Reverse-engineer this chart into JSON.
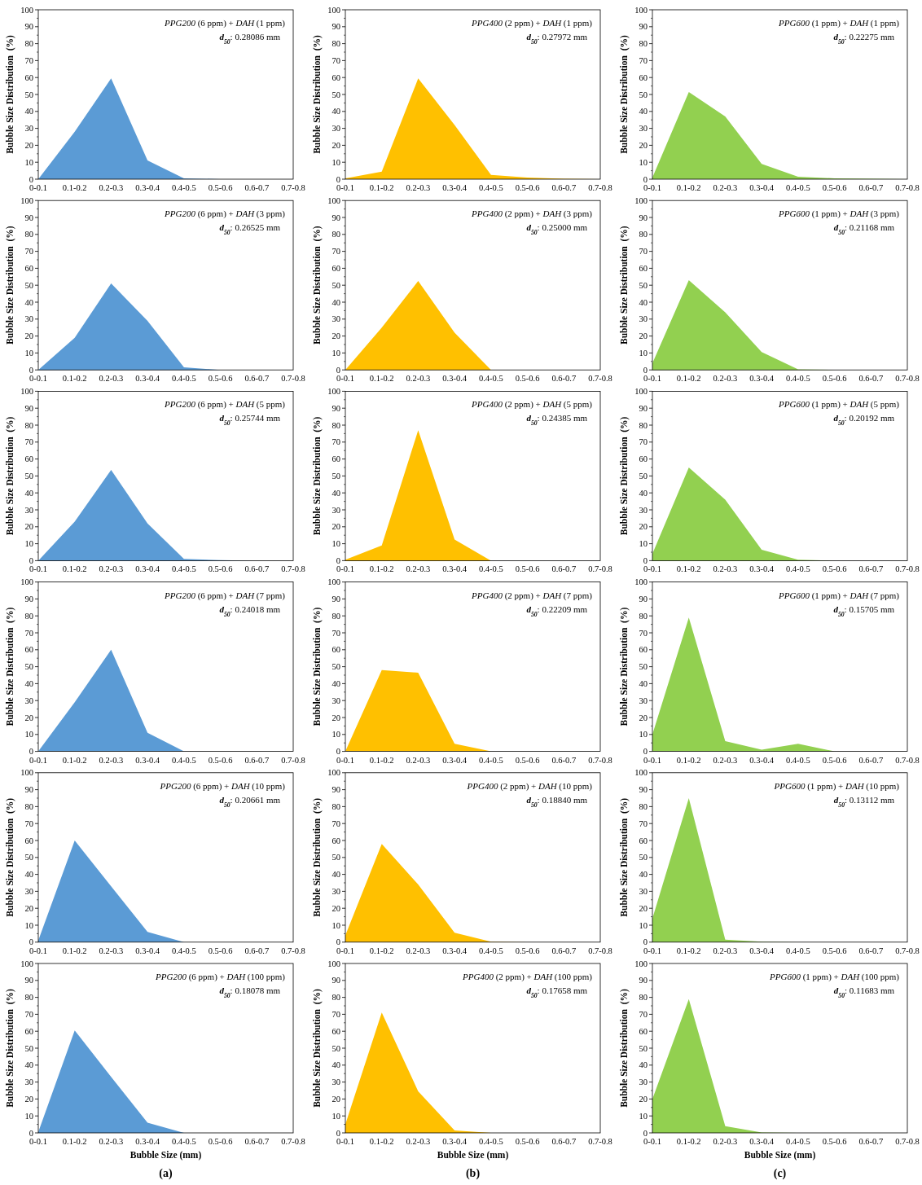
{
  "chart_data": [
    {
      "type": "area",
      "categories": [
        "0-0.1",
        "0.1-0.2",
        "0.2-0.3",
        "0.3-0.4",
        "0.4-0.5",
        "0.5-0.6",
        "0.6-0.7",
        "0.7-0.8"
      ],
      "values": [
        0,
        28,
        59.5,
        11,
        0.5,
        0,
        0,
        0
      ],
      "color": "#5b9bd5",
      "ylim": [
        0,
        100
      ],
      "yticks": [
        0,
        10,
        20,
        30,
        40,
        50,
        60,
        70,
        80,
        90,
        100
      ],
      "ylabel": "Bubble Size Distribution  (%)",
      "annotations": [
        "PPG200 (6 ppm) + DAH (1 ppm)",
        "d$_{50}$: 0.28086 mm"
      ]
    },
    {
      "type": "area",
      "categories": [
        "0-0.1",
        "0.1-0.2",
        "0.2-0.3",
        "0.3-0.4",
        "0.4-0.5",
        "0.5-0.6",
        "0.6-0.7",
        "0.7-0.8"
      ],
      "values": [
        0.5,
        4.5,
        59.5,
        32,
        2.5,
        1,
        0.2,
        0
      ],
      "color": "#ffc000",
      "ylim": [
        0,
        100
      ],
      "yticks": [
        0,
        10,
        20,
        30,
        40,
        50,
        60,
        70,
        80,
        90,
        100
      ],
      "ylabel": "Bubble Size Distribution  (%)",
      "annotations": [
        "PPG400 (2 ppm) + DAH (1 ppm)",
        "d$_{50}$: 0.27972 mm"
      ]
    },
    {
      "type": "area",
      "categories": [
        "0-0.1",
        "0.1-0.2",
        "0.2-0.3",
        "0.3-0.4",
        "0.4-0.5",
        "0.5-0.6",
        "0.6-0.7",
        "0.7-0.8"
      ],
      "values": [
        1,
        51.5,
        37,
        9,
        1.5,
        0.5,
        0.2,
        0
      ],
      "color": "#92d050",
      "ylim": [
        0,
        100
      ],
      "yticks": [
        0,
        10,
        20,
        30,
        40,
        50,
        60,
        70,
        80,
        90,
        100
      ],
      "ylabel": "Bubble Size Distribution  (%)",
      "annotations": [
        "PPG600 (1 ppm) + DAH (1 ppm)",
        "d$_{50}$: 0.22275 mm"
      ]
    },
    {
      "type": "area",
      "categories": [
        "0-0.1",
        "0.1-0.2",
        "0.2-0.3",
        "0.3-0.4",
        "0.4-0.5",
        "0.5-0.6",
        "0.6-0.7",
        "0.7-0.8"
      ],
      "values": [
        0,
        19,
        51,
        29,
        1.5,
        0,
        0,
        0
      ],
      "color": "#5b9bd5",
      "ylim": [
        0,
        100
      ],
      "yticks": [
        0,
        10,
        20,
        30,
        40,
        50,
        60,
        70,
        80,
        90,
        100
      ],
      "ylabel": "Bubble Size Distribution  (%)",
      "annotations": [
        "PPG200 (6 ppm) + DAH (3 ppm)",
        "d$_{50}$: 0.26525 mm"
      ]
    },
    {
      "type": "area",
      "categories": [
        "0-0.1",
        "0.1-0.2",
        "0.2-0.3",
        "0.3-0.4",
        "0.4-0.5",
        "0.5-0.6",
        "0.6-0.7",
        "0.7-0.8"
      ],
      "values": [
        0,
        25,
        52.5,
        22,
        0,
        0,
        0,
        0
      ],
      "color": "#ffc000",
      "ylim": [
        0,
        100
      ],
      "yticks": [
        0,
        10,
        20,
        30,
        40,
        50,
        60,
        70,
        80,
        90,
        100
      ],
      "ylabel": "Bubble Size Distribution  (%)",
      "annotations": [
        "PPG400 (2 ppm) + DAH (3 ppm)",
        "d$_{50}$: 0.25000 mm"
      ]
    },
    {
      "type": "area",
      "categories": [
        "0-0.1",
        "0.1-0.2",
        "0.2-0.3",
        "0.3-0.4",
        "0.4-0.5",
        "0.5-0.6",
        "0.6-0.7",
        "0.7-0.8"
      ],
      "values": [
        4,
        53,
        34,
        10.5,
        0.3,
        0,
        0,
        0
      ],
      "color": "#92d050",
      "ylim": [
        0,
        100
      ],
      "yticks": [
        0,
        10,
        20,
        30,
        40,
        50,
        60,
        70,
        80,
        90,
        100
      ],
      "ylabel": "Bubble Size Distribution  (%)",
      "annotations": [
        "PPG600 (1 ppm) + DAH (3 ppm)",
        "d$_{50}$: 0.21168 mm"
      ]
    },
    {
      "type": "area",
      "categories": [
        "0-0.1",
        "0.1-0.2",
        "0.2-0.3",
        "0.3-0.4",
        "0.4-0.5",
        "0.5-0.6",
        "0.6-0.7",
        "0.7-0.8"
      ],
      "values": [
        0,
        23,
        53.5,
        22,
        1,
        0.3,
        0,
        0
      ],
      "color": "#5b9bd5",
      "ylim": [
        0,
        100
      ],
      "yticks": [
        0,
        10,
        20,
        30,
        40,
        50,
        60,
        70,
        80,
        90,
        100
      ],
      "ylabel": "Bubble Size Distribution  (%)",
      "annotations": [
        "PPG200 (6 ppm) + DAH (5 ppm)",
        "d$_{50}$: 0.25744 mm"
      ]
    },
    {
      "type": "area",
      "categories": [
        "0-0.1",
        "0.1-0.2",
        "0.2-0.3",
        "0.3-0.4",
        "0.4-0.5",
        "0.5-0.6",
        "0.6-0.7",
        "0.7-0.8"
      ],
      "values": [
        0.5,
        9,
        77,
        12.5,
        0,
        0,
        0,
        0
      ],
      "color": "#ffc000",
      "ylim": [
        0,
        100
      ],
      "yticks": [
        0,
        10,
        20,
        30,
        40,
        50,
        60,
        70,
        80,
        90,
        100
      ],
      "ylabel": "Bubble Size Distribution  (%)",
      "annotations": [
        "PPG400 (2 ppm) + DAH (5 ppm)",
        "d$_{50}$: 0.24385 mm"
      ]
    },
    {
      "type": "area",
      "categories": [
        "0-0.1",
        "0.1-0.2",
        "0.2-0.3",
        "0.3-0.4",
        "0.4-0.5",
        "0.5-0.6",
        "0.6-0.7",
        "0.7-0.8"
      ],
      "values": [
        4,
        55,
        36,
        6.5,
        0.5,
        0,
        0,
        0
      ],
      "color": "#92d050",
      "ylim": [
        0,
        100
      ],
      "yticks": [
        0,
        10,
        20,
        30,
        40,
        50,
        60,
        70,
        80,
        90,
        100
      ],
      "ylabel": "Bubble Size Distribution  (%)",
      "annotations": [
        "PPG600 (1 ppm) + DAH (5 ppm)",
        "d$_{50}$: 0.20192 mm"
      ]
    },
    {
      "type": "area",
      "categories": [
        "0-0.1",
        "0.1-0.2",
        "0.2-0.3",
        "0.3-0.4",
        "0.4-0.5",
        "0.5-0.6",
        "0.6-0.7",
        "0.7-0.8"
      ],
      "values": [
        0,
        29,
        60,
        11,
        0,
        0,
        0,
        0
      ],
      "color": "#5b9bd5",
      "ylim": [
        0,
        100
      ],
      "yticks": [
        0,
        10,
        20,
        30,
        40,
        50,
        60,
        70,
        80,
        90,
        100
      ],
      "ylabel": "Bubble Size Distribution  (%)",
      "annotations": [
        "PPG200 (6 ppm) + DAH (7 ppm)",
        "d$_{50}$: 0.24018 mm"
      ]
    },
    {
      "type": "area",
      "categories": [
        "0-0.1",
        "0.1-0.2",
        "0.2-0.3",
        "0.3-0.4",
        "0.4-0.5",
        "0.5-0.6",
        "0.6-0.7",
        "0.7-0.8"
      ],
      "values": [
        0,
        48,
        46.5,
        4.5,
        0,
        0,
        0,
        0
      ],
      "color": "#ffc000",
      "ylim": [
        0,
        100
      ],
      "yticks": [
        0,
        10,
        20,
        30,
        40,
        50,
        60,
        70,
        80,
        90,
        100
      ],
      "ylabel": "Bubble Size Distribution  (%)",
      "annotations": [
        "PPG400 (2 ppm) + DAH (7 ppm)",
        "d$_{50}$: 0.22209 mm"
      ]
    },
    {
      "type": "area",
      "categories": [
        "0-0.1",
        "0.1-0.2",
        "0.2-0.3",
        "0.3-0.4",
        "0.4-0.5",
        "0.5-0.6",
        "0.6-0.7",
        "0.7-0.8"
      ],
      "values": [
        10,
        79,
        6,
        1,
        4.5,
        0,
        0,
        0
      ],
      "color": "#92d050",
      "ylim": [
        0,
        100
      ],
      "yticks": [
        0,
        10,
        20,
        30,
        40,
        50,
        60,
        70,
        80,
        90,
        100
      ],
      "ylabel": "Bubble Size Distribution  (%)",
      "annotations": [
        "PPG600 (1 ppm) + DAH (7 ppm)",
        "d$_{50}$: 0.15705 mm"
      ]
    },
    {
      "type": "area",
      "categories": [
        "0-0.1",
        "0.1-0.2",
        "0.2-0.3",
        "0.3-0.4",
        "0.4-0.5",
        "0.5-0.6",
        "0.6-0.7",
        "0.7-0.8"
      ],
      "values": [
        1,
        60,
        33,
        6,
        0,
        0,
        0,
        0
      ],
      "color": "#5b9bd5",
      "ylim": [
        0,
        100
      ],
      "yticks": [
        0,
        10,
        20,
        30,
        40,
        50,
        60,
        70,
        80,
        90,
        100
      ],
      "ylabel": "Bubble Size Distribution  (%)",
      "annotations": [
        "PPG200 (6 ppm) + DAH (10 ppm)",
        "d$_{50}$: 0.20661 mm"
      ]
    },
    {
      "type": "area",
      "categories": [
        "0-0.1",
        "0.1-0.2",
        "0.2-0.3",
        "0.3-0.4",
        "0.4-0.5",
        "0.5-0.6",
        "0.6-0.7",
        "0.7-0.8"
      ],
      "values": [
        4,
        58,
        34,
        5.5,
        0.3,
        0,
        0,
        0
      ],
      "color": "#ffc000",
      "ylim": [
        0,
        100
      ],
      "yticks": [
        0,
        10,
        20,
        30,
        40,
        50,
        60,
        70,
        80,
        90,
        100
      ],
      "ylabel": "Bubble Size Distribution  (%)",
      "annotations": [
        "PPG400 (2 ppm) + DAH (10 ppm)",
        "d$_{50}$: 0.18840 mm"
      ]
    },
    {
      "type": "area",
      "categories": [
        "0-0.1",
        "0.1-0.2",
        "0.2-0.3",
        "0.3-0.4",
        "0.4-0.5",
        "0.5-0.6",
        "0.6-0.7",
        "0.7-0.8"
      ],
      "values": [
        14,
        85,
        1.5,
        0.3,
        0,
        0,
        0,
        0
      ],
      "color": "#92d050",
      "ylim": [
        0,
        100
      ],
      "yticks": [
        0,
        10,
        20,
        30,
        40,
        50,
        60,
        70,
        80,
        90,
        100
      ],
      "ylabel": "Bubble Size Distribution  (%)",
      "annotations": [
        "PPG600 (1 ppm) + DAH (10 ppm)",
        "d$_{50}$: 0.13112 mm"
      ]
    },
    {
      "type": "area",
      "categories": [
        "0-0.1",
        "0.1-0.2",
        "0.2-0.3",
        "0.3-0.4",
        "0.4-0.5",
        "0.5-0.6",
        "0.6-0.7",
        "0.7-0.8"
      ],
      "values": [
        0.5,
        60.5,
        33,
        6,
        0,
        0,
        0,
        0
      ],
      "color": "#5b9bd5",
      "ylim": [
        0,
        100
      ],
      "yticks": [
        0,
        10,
        20,
        30,
        40,
        50,
        60,
        70,
        80,
        90,
        100
      ],
      "ylabel": "Bubble Size Distribution  (%)",
      "xlabel": "Bubble Size (mm)",
      "annotations": [
        "PPG200 (6 ppm) + DAH (100 ppm)",
        "d$_{50}$: 0.18078 mm",
        "(a)"
      ]
    },
    {
      "type": "area",
      "categories": [
        "0-0.1",
        "0.1-0.2",
        "0.2-0.3",
        "0.3-0.4",
        "0.4-0.5",
        "0.5-0.6",
        "0.6-0.7",
        "0.7-0.8"
      ],
      "values": [
        5,
        71,
        24.5,
        1.5,
        0,
        0,
        0,
        0
      ],
      "color": "#ffc000",
      "ylim": [
        0,
        100
      ],
      "yticks": [
        0,
        10,
        20,
        30,
        40,
        50,
        60,
        70,
        80,
        90,
        100
      ],
      "ylabel": "Bubble Size Distribution  (%)",
      "xlabel": "Bubble Size (mm)",
      "annotations": [
        "PPG400 (2 ppm) + DAH (100 ppm)",
        "d$_{50}$: 0.17658 mm",
        "(b)"
      ]
    },
    {
      "type": "area",
      "categories": [
        "0-0.1",
        "0.1-0.2",
        "0.2-0.3",
        "0.3-0.4",
        "0.4-0.5",
        "0.5-0.6",
        "0.6-0.7",
        "0.7-0.8"
      ],
      "values": [
        20,
        79,
        4,
        0.3,
        0,
        0,
        0,
        0
      ],
      "color": "#92d050",
      "ylim": [
        0,
        100
      ],
      "yticks": [
        0,
        10,
        20,
        30,
        40,
        50,
        60,
        70,
        80,
        90,
        100
      ],
      "ylabel": "Bubble Size Distribution  (%)",
      "xlabel": "Bubble Size (mm)",
      "annotations": [
        "PPG600 (1 ppm) + DAH (100 ppm)",
        "d$_{50}$: 0.11683 mm",
        "(c)"
      ]
    }
  ]
}
